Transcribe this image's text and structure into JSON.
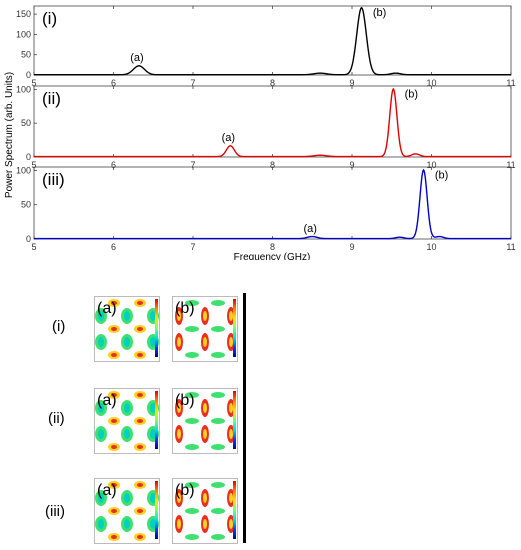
{
  "chart_data": {
    "type": "line",
    "xlabel": "Frequency (GHz)",
    "ylabel": "Power Spectrum (arb. Units)",
    "xlim": [
      5,
      11
    ],
    "ylim": [
      0,
      170
    ],
    "x_ticks": [
      "5",
      "6",
      "7",
      "8",
      "9",
      "10",
      "11"
    ],
    "y_ticks": [
      "0",
      "50",
      "100",
      "150"
    ],
    "panels": [
      {
        "label": "(i)",
        "color": "#000000",
        "ylim": [
          0,
          170
        ],
        "y_ticks": [
          "0",
          "50",
          "100",
          "150"
        ],
        "peaks": [
          {
            "label": "(a)",
            "x": 6.32,
            "y": 22,
            "width": 0.07
          },
          {
            "label": "(b)",
            "x": 9.12,
            "y": 165,
            "width": 0.06
          }
        ],
        "minor_peaks": [
          {
            "x": 8.6,
            "y": 4,
            "width": 0.08
          },
          {
            "x": 9.55,
            "y": 4,
            "width": 0.06
          }
        ]
      },
      {
        "label": "(ii)",
        "color": "#e00000",
        "ylim": [
          0,
          105
        ],
        "y_ticks": [
          "0",
          "50",
          "100"
        ],
        "peaks": [
          {
            "label": "(a)",
            "x": 7.47,
            "y": 16,
            "width": 0.05
          },
          {
            "label": "(b)",
            "x": 9.52,
            "y": 100,
            "width": 0.045
          }
        ],
        "minor_peaks": [
          {
            "x": 8.6,
            "y": 2,
            "width": 0.08
          },
          {
            "x": 9.8,
            "y": 4,
            "width": 0.05
          }
        ]
      },
      {
        "label": "(iii)",
        "color": "#0000cc",
        "ylim": [
          0,
          105
        ],
        "y_ticks": [
          "0",
          "50",
          "100"
        ],
        "peaks": [
          {
            "label": "(a)",
            "x": 8.5,
            "y": 3,
            "width": 0.06
          },
          {
            "label": "(b)",
            "x": 9.9,
            "y": 100,
            "width": 0.045
          }
        ],
        "minor_peaks": [
          {
            "x": 9.6,
            "y": 2,
            "width": 0.05
          },
          {
            "x": 10.1,
            "y": 3,
            "width": 0.05
          }
        ]
      }
    ]
  },
  "mode_maps": {
    "rows": [
      {
        "label": "(i)",
        "maps": [
          {
            "label": "(a)"
          },
          {
            "label": "(b)"
          }
        ]
      },
      {
        "label": "(ii)",
        "maps": [
          {
            "label": "(a)"
          },
          {
            "label": "(b)"
          }
        ]
      },
      {
        "label": "(iii)",
        "maps": [
          {
            "label": "(a)"
          },
          {
            "label": "(b)"
          }
        ]
      }
    ]
  }
}
